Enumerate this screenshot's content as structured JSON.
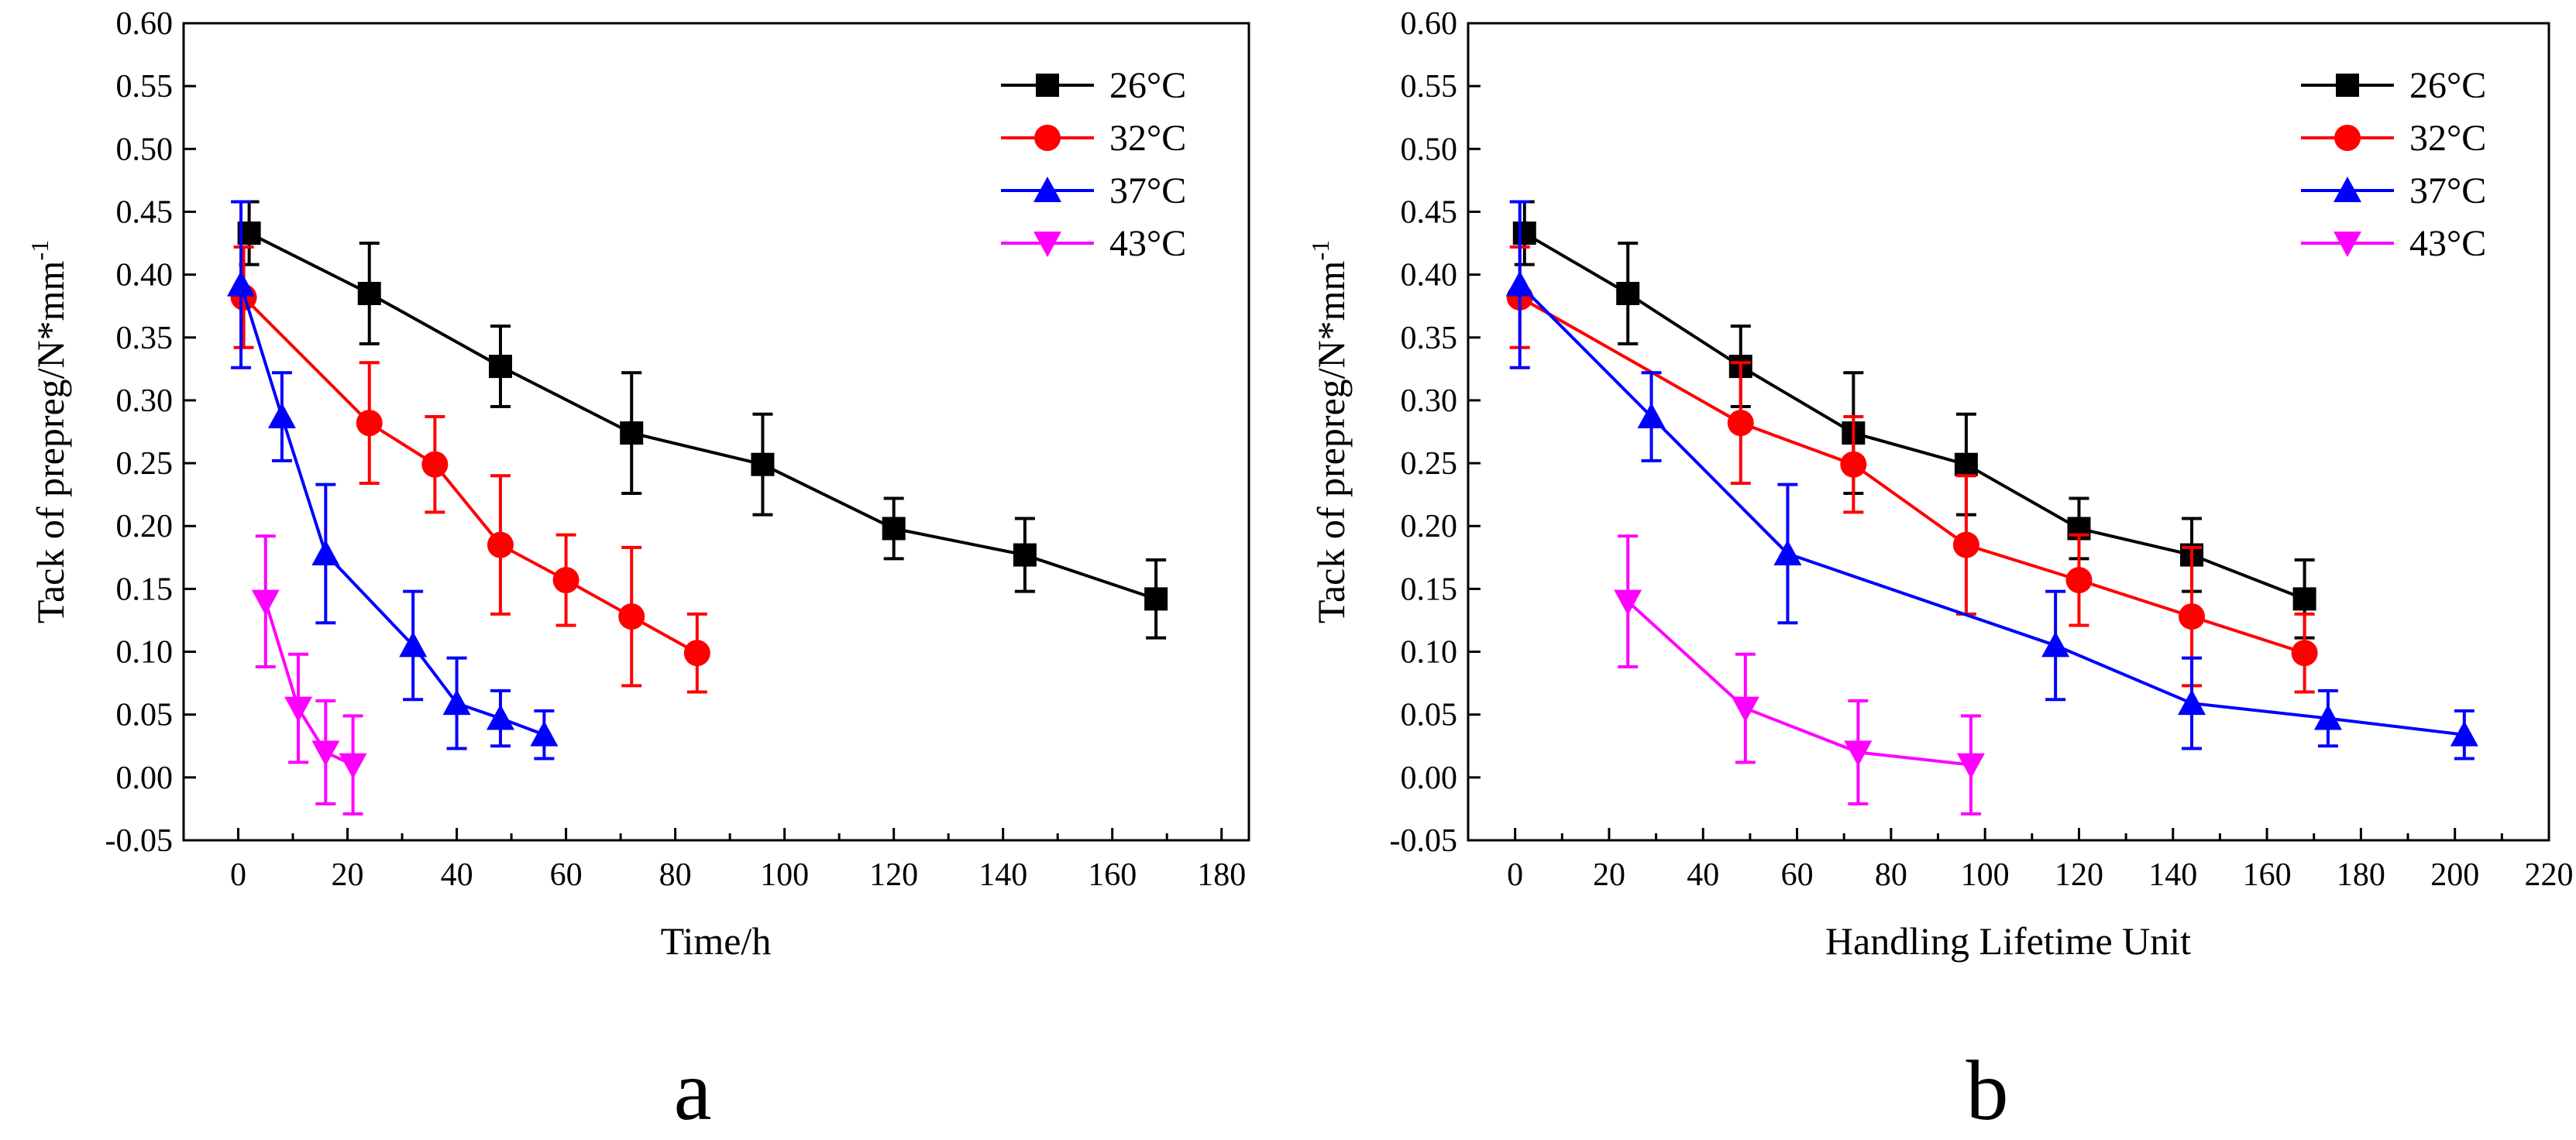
{
  "chart_data": [
    {
      "type": "line",
      "panel_label": "a",
      "xlabel": "Time/h",
      "ylabel": "Tack of prepreg/N*mm",
      "ylabel_sup": "-1",
      "xlim": [
        -10,
        185
      ],
      "ylim": [
        -0.05,
        0.6
      ],
      "xticks": [
        0,
        20,
        40,
        60,
        80,
        100,
        120,
        140,
        160,
        180
      ],
      "yticks": [
        -0.05,
        0.0,
        0.05,
        0.1,
        0.15,
        0.2,
        0.25,
        0.3,
        0.35,
        0.4,
        0.45,
        0.5,
        0.55,
        0.6
      ],
      "legend_position": "top-right",
      "series": [
        {
          "name": "26°C",
          "color": "#000000",
          "marker": "square",
          "x": [
            2,
            24,
            48,
            72,
            96,
            120,
            144,
            168
          ],
          "y": [
            0.433,
            0.385,
            0.327,
            0.274,
            0.249,
            0.198,
            0.177,
            0.142
          ],
          "err": [
            0.025,
            0.04,
            0.032,
            0.048,
            0.04,
            0.024,
            0.029,
            0.031
          ]
        },
        {
          "name": "32°C",
          "color": "#ff0000",
          "marker": "circle",
          "x": [
            1,
            24,
            36,
            48,
            60,
            72,
            84
          ],
          "y": [
            0.382,
            0.282,
            0.249,
            0.185,
            0.157,
            0.128,
            0.099
          ],
          "err": [
            0.04,
            0.048,
            0.038,
            0.055,
            0.036,
            0.055,
            0.031
          ]
        },
        {
          "name": "37°C",
          "color": "#0000ff",
          "marker": "triangle-up",
          "x": [
            0.5,
            8,
            16,
            32,
            40,
            48,
            56
          ],
          "y": [
            0.392,
            0.287,
            0.178,
            0.105,
            0.059,
            0.047,
            0.034
          ],
          "err": [
            0.066,
            0.035,
            0.055,
            0.043,
            0.036,
            0.022,
            0.019
          ]
        },
        {
          "name": "43°C",
          "color": "#ff00ff",
          "marker": "triangle-down",
          "x": [
            5,
            11,
            16,
            21
          ],
          "y": [
            0.14,
            0.055,
            0.02,
            0.01
          ],
          "err": [
            0.052,
            0.043,
            0.041,
            0.039
          ]
        }
      ]
    },
    {
      "type": "line",
      "panel_label": "b",
      "xlabel": "Handling Lifetime Unit",
      "ylabel": "Tack of prepreg/N*mm",
      "ylabel_sup": "-1",
      "xlim": [
        -10,
        220
      ],
      "ylim": [
        -0.05,
        0.6
      ],
      "xticks": [
        0,
        20,
        40,
        60,
        80,
        100,
        120,
        140,
        160,
        180,
        200,
        220
      ],
      "yticks": [
        -0.05,
        0.0,
        0.05,
        0.1,
        0.15,
        0.2,
        0.25,
        0.3,
        0.35,
        0.4,
        0.45,
        0.5,
        0.55,
        0.6
      ],
      "legend_position": "top-right",
      "series": [
        {
          "name": "26°C",
          "color": "#000000",
          "marker": "square",
          "x": [
            2,
            24,
            48,
            72,
            96,
            120,
            144,
            168
          ],
          "y": [
            0.433,
            0.385,
            0.327,
            0.274,
            0.249,
            0.198,
            0.177,
            0.142
          ],
          "err": [
            0.025,
            0.04,
            0.032,
            0.048,
            0.04,
            0.024,
            0.029,
            0.031
          ]
        },
        {
          "name": "32°C",
          "color": "#ff0000",
          "marker": "circle",
          "x": [
            1,
            48,
            72,
            96,
            120,
            144,
            168
          ],
          "y": [
            0.382,
            0.282,
            0.249,
            0.185,
            0.157,
            0.128,
            0.099
          ],
          "err": [
            0.04,
            0.048,
            0.038,
            0.055,
            0.036,
            0.055,
            0.031
          ]
        },
        {
          "name": "37°C",
          "color": "#0000ff",
          "marker": "triangle-up",
          "x": [
            1,
            29,
            58,
            115,
            144,
            173,
            202
          ],
          "y": [
            0.392,
            0.287,
            0.178,
            0.105,
            0.059,
            0.047,
            0.034
          ],
          "err": [
            0.066,
            0.035,
            0.055,
            0.043,
            0.036,
            0.022,
            0.019
          ]
        },
        {
          "name": "43°C",
          "color": "#ff00ff",
          "marker": "triangle-down",
          "x": [
            24,
            49,
            73,
            97
          ],
          "y": [
            0.14,
            0.055,
            0.02,
            0.01
          ],
          "err": [
            0.052,
            0.043,
            0.041,
            0.039
          ]
        }
      ]
    }
  ]
}
